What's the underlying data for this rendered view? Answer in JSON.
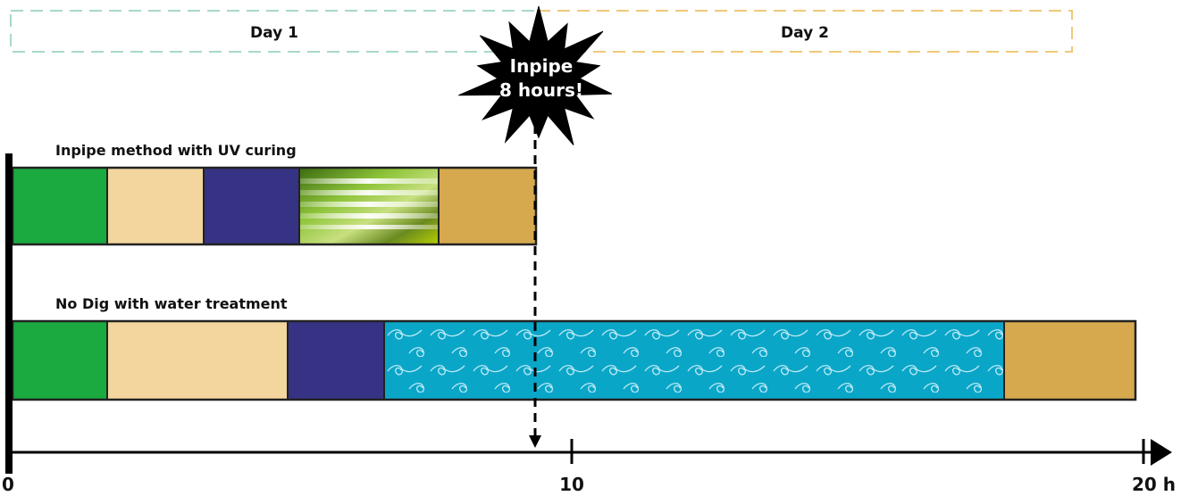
{
  "days": {
    "day1": "Day 1",
    "day2": "Day 2",
    "day1_color": "#a8d8c8",
    "day2_color": "#f0c878"
  },
  "callout": {
    "line1": "Inpipe",
    "line2": "8 hours!"
  },
  "rows": [
    {
      "label": "Inpipe method with UV curing",
      "segments": [
        {
          "color": "#1aaa40",
          "pattern": "solid"
        },
        {
          "color": "#f3d59e",
          "pattern": "solid"
        },
        {
          "color": "#363284",
          "pattern": "solid"
        },
        {
          "color": "#8ab830",
          "pattern": "uv-stripes"
        },
        {
          "color": "#d6a94e",
          "pattern": "solid"
        }
      ]
    },
    {
      "label": "No Dig with water treatment",
      "segments": [
        {
          "color": "#1aaa40",
          "pattern": "solid"
        },
        {
          "color": "#f3d59e",
          "pattern": "solid"
        },
        {
          "color": "#363284",
          "pattern": "solid"
        },
        {
          "color": "#0aa6c8",
          "pattern": "waves"
        },
        {
          "color": "#d6a94e",
          "pattern": "solid"
        }
      ]
    }
  ],
  "axis": {
    "ticks": [
      "0",
      "10",
      "20 h"
    ]
  }
}
